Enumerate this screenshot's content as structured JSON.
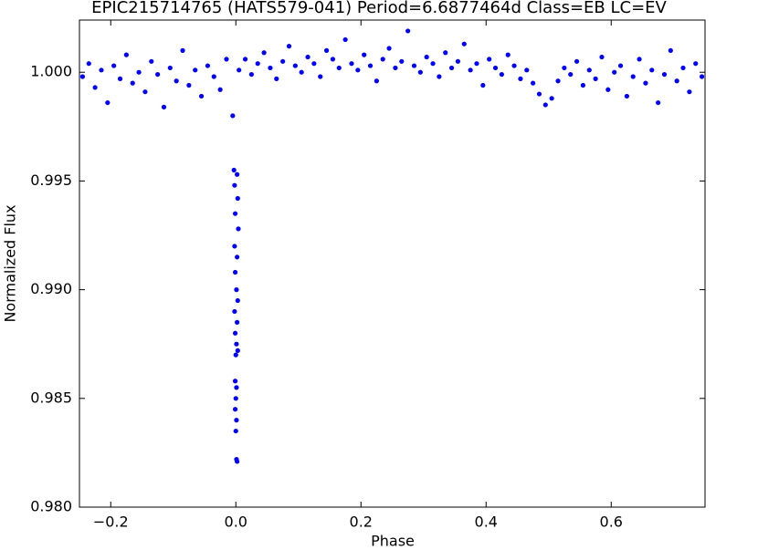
{
  "chart_data": {
    "type": "scatter",
    "title": "EPIC215714765 (HATS579-041)  Period=6.6877464d  Class=EB  LC=EV",
    "xlabel": "Phase",
    "ylabel": "Normalized Flux",
    "color": "#0000ff",
    "xlim": [
      -0.25,
      0.75
    ],
    "ylim": [
      0.98,
      1.0024
    ],
    "xticks": [
      {
        "value": -0.2,
        "label": "−0.2"
      },
      {
        "value": 0.0,
        "label": "0.0"
      },
      0.2,
      0.4,
      0.6
    ],
    "yticks": [
      {
        "value": 0.98,
        "label": "0.980"
      },
      0.985,
      {
        "value": 0.99,
        "label": "0.990"
      },
      0.995,
      {
        "value": 1.0,
        "label": "1.000"
      }
    ],
    "x": [
      -0.245,
      -0.235,
      -0.225,
      -0.215,
      -0.205,
      -0.195,
      -0.185,
      -0.175,
      -0.165,
      -0.155,
      -0.145,
      -0.135,
      -0.125,
      -0.115,
      -0.105,
      -0.095,
      -0.085,
      -0.075,
      -0.065,
      -0.055,
      -0.045,
      -0.035,
      -0.025,
      -0.015,
      -0.005,
      0.005,
      0.015,
      0.025,
      0.035,
      0.045,
      0.055,
      0.065,
      0.075,
      0.085,
      0.095,
      0.105,
      0.115,
      0.125,
      0.135,
      0.145,
      0.155,
      0.165,
      0.175,
      0.185,
      0.195,
      0.205,
      0.215,
      0.225,
      0.235,
      0.245,
      0.255,
      0.265,
      0.275,
      0.285,
      0.295,
      0.305,
      0.315,
      0.325,
      0.335,
      0.345,
      0.355,
      0.365,
      0.375,
      0.385,
      0.395,
      0.405,
      0.415,
      0.425,
      0.435,
      0.445,
      0.455,
      0.465,
      0.475,
      0.485,
      0.495,
      0.505,
      0.515,
      0.525,
      0.535,
      0.545,
      0.555,
      0.565,
      0.575,
      0.585,
      0.595,
      0.605,
      0.615,
      0.625,
      0.635,
      0.645,
      0.655,
      0.665,
      0.675,
      0.685,
      0.695,
      0.705,
      0.715,
      0.725,
      0.735,
      0.745,
      -0.003,
      0.002,
      -0.002,
      0.003,
      -0.001,
      0.004,
      -0.002,
      0.002,
      -0.001,
      0.001,
      0.003,
      -0.002,
      0.002,
      -0.001,
      0.001,
      0.003,
      0.0,
      -0.001,
      0.001,
      0.0,
      -0.001,
      0.001,
      0.0,
      0.001,
      0.002
    ],
    "values": [
      0.9998,
      1.0004,
      0.9993,
      1.0001,
      0.9986,
      1.0003,
      0.9997,
      1.0008,
      0.9995,
      1.0,
      0.9991,
      1.0005,
      0.9999,
      0.9984,
      1.0002,
      0.9996,
      1.001,
      0.9994,
      1.0001,
      0.9989,
      1.0003,
      0.9998,
      0.9992,
      1.0006,
      0.998,
      1.0001,
      1.0006,
      0.9999,
      1.0004,
      1.0009,
      1.0002,
      0.9997,
      1.0005,
      1.0012,
      1.0003,
      1.0,
      1.0007,
      1.0004,
      0.9998,
      1.001,
      1.0006,
      1.0002,
      1.0015,
      1.0004,
      1.0001,
      1.0008,
      1.0003,
      0.9996,
      1.0006,
      1.0011,
      1.0002,
      1.0005,
      1.0019,
      1.0003,
      1.0,
      1.0007,
      1.0004,
      0.9998,
      1.0009,
      1.0002,
      1.0005,
      1.0013,
      1.0001,
      1.0004,
      0.9994,
      1.0006,
      1.0002,
      0.9999,
      1.0008,
      1.0003,
      0.9997,
      1.0001,
      0.9995,
      0.999,
      0.9985,
      0.9988,
      0.9996,
      1.0002,
      0.9999,
      1.0005,
      0.9994,
      1.0001,
      0.9997,
      1.0007,
      0.9992,
      1.0,
      1.0003,
      0.9989,
      0.9998,
      1.0006,
      0.9995,
      1.0001,
      0.9986,
      0.9999,
      1.001,
      0.9996,
      1.0002,
      0.9991,
      1.0004,
      0.9998,
      0.9955,
      0.9953,
      0.9948,
      0.9942,
      0.9935,
      0.9928,
      0.992,
      0.9915,
      0.9908,
      0.99,
      0.9895,
      0.989,
      0.9885,
      0.988,
      0.9875,
      0.9872,
      0.987,
      0.9858,
      0.9855,
      0.985,
      0.9845,
      0.984,
      0.9835,
      0.9822,
      0.9821
    ]
  }
}
